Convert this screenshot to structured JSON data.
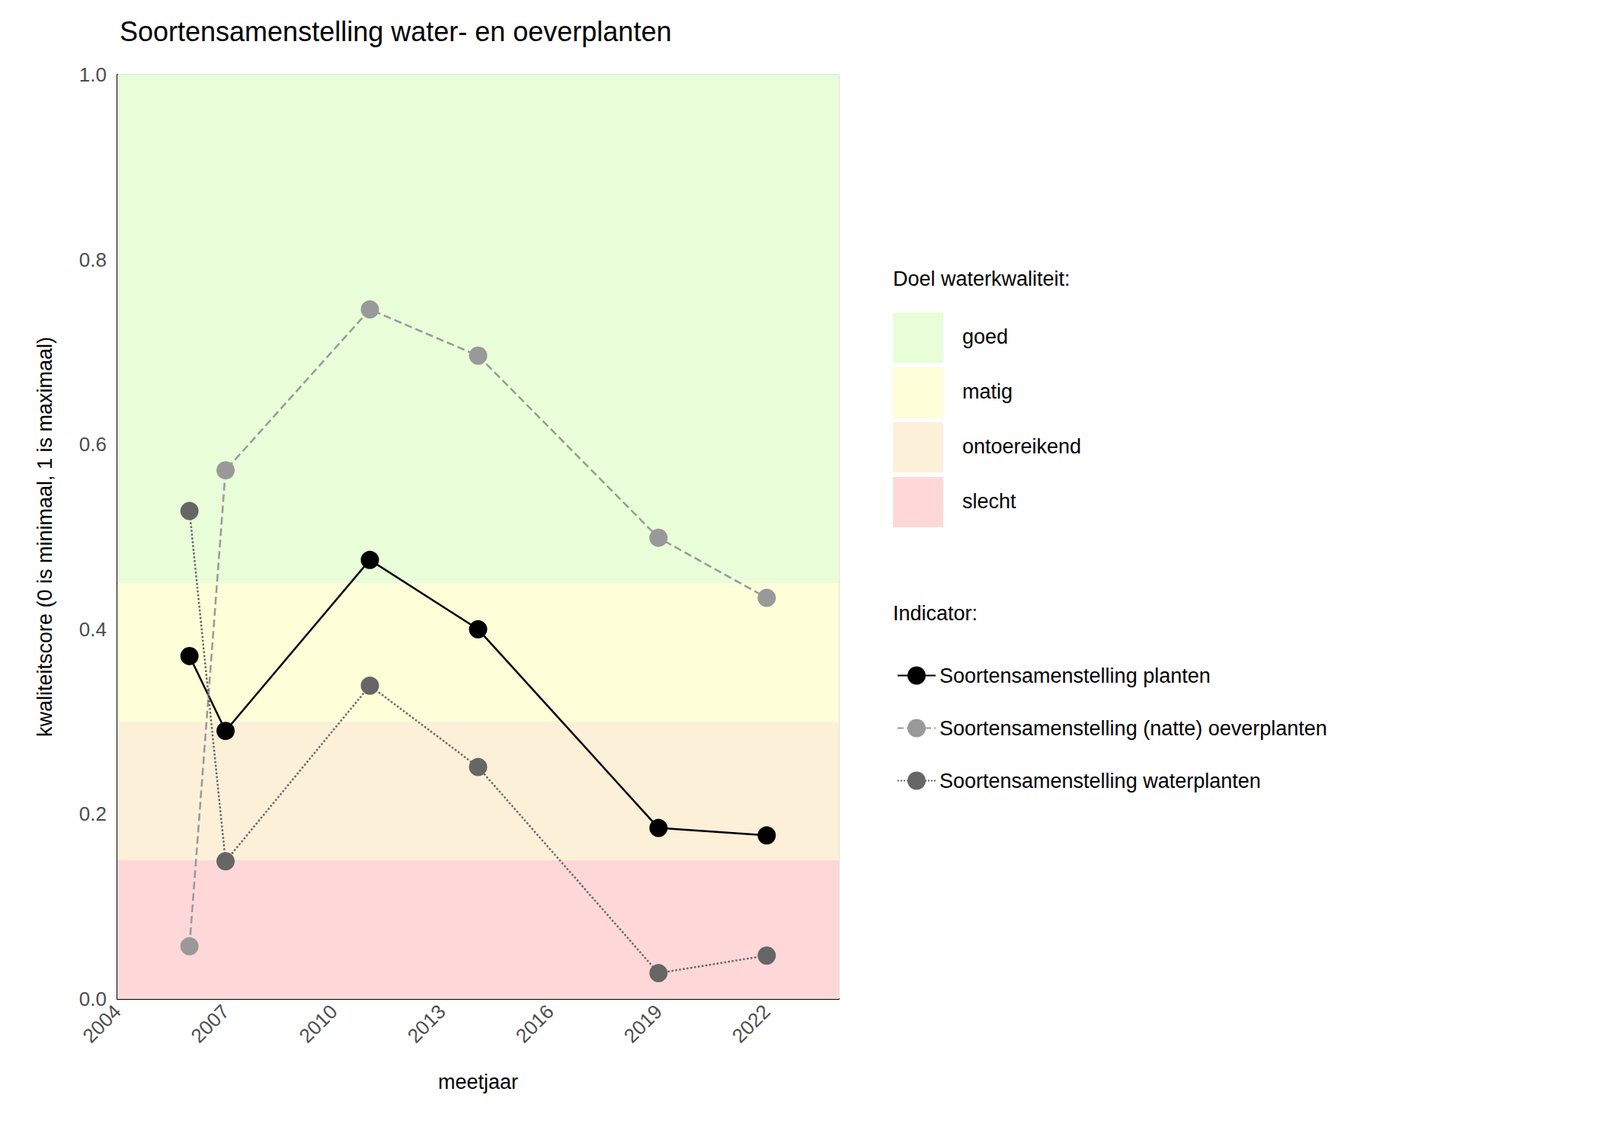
{
  "chart_data": {
    "type": "line",
    "title": "Soortensamenstelling water- en oeverplanten",
    "x_label": "meetjaar",
    "y_label": "kwaliteitscore (0 is minimaal, 1 is maximaal)",
    "xlim": [
      2004,
      2024
    ],
    "xticks": [
      2004,
      2007,
      2010,
      2013,
      2016,
      2019,
      2022
    ],
    "ylim": [
      0,
      1
    ],
    "yticks": [
      {
        "value": 0,
        "label": "0.0"
      },
      {
        "value": 0.2,
        "label": "0.2"
      },
      {
        "value": 0.4,
        "label": "0.4"
      },
      {
        "value": 0.6,
        "label": "0.6"
      },
      {
        "value": 0.8,
        "label": "0.8"
      },
      {
        "value": 1,
        "label": "1.0"
      }
    ],
    "grid": true,
    "legend": "right",
    "legend_title": "Indicator:",
    "bands_title": "Doel waterkwaliteit:",
    "bands": [
      {
        "label": "goed",
        "from": 0.45,
        "to": 1,
        "color": "#e8fdd8"
      },
      {
        "label": "matig",
        "from": 0.3,
        "to": 0.45,
        "color": "#fefed8"
      },
      {
        "label": "ontoereikend",
        "from": 0.15,
        "to": 0.3,
        "color": "#fdf0d8"
      },
      {
        "label": "slecht",
        "from": 0,
        "to": 0.15,
        "color": "#fed8d8"
      }
    ],
    "x": [
      2006,
      2007,
      2011,
      2014,
      2019,
      2022
    ],
    "series": [
      {
        "name": "Soortensamenstelling planten",
        "color": "#000000",
        "marker": "circle",
        "line_style": "solid",
        "values": [
          0.371,
          0.29,
          0.475,
          0.4,
          0.185,
          0.177
        ]
      },
      {
        "name": "Soortensamenstelling (natte) oeverplanten",
        "color": "#999999",
        "marker": "circle",
        "line_style": "dashed",
        "values": [
          0.057,
          0.572,
          0.746,
          0.696,
          0.499,
          0.434
        ]
      },
      {
        "name": "Soortensamenstelling waterplanten",
        "color": "#666666",
        "marker": "circle",
        "line_style": "dotted",
        "values": [
          0.528,
          0.149,
          0.339,
          0.251,
          0.028,
          0.047
        ]
      }
    ]
  }
}
